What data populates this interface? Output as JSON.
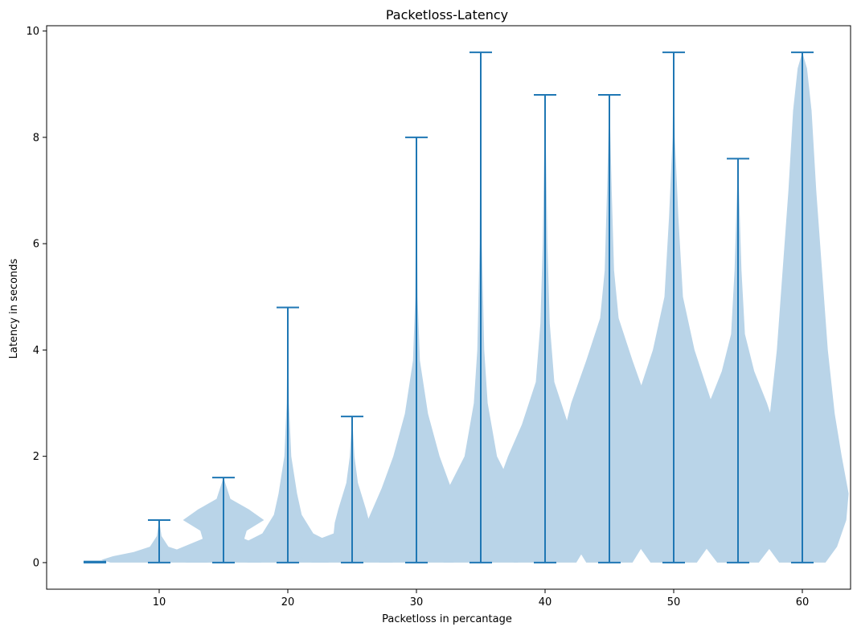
{
  "chart_data": {
    "type": "violin",
    "title": "Packetloss-Latency",
    "xlabel": "Packetloss in percantage",
    "ylabel": "Latency in seconds",
    "xlim": [
      1.25,
      63.75
    ],
    "ylim": [
      -0.5,
      10.1
    ],
    "x_ticks": [
      10,
      20,
      30,
      40,
      50,
      60
    ],
    "y_ticks": [
      0,
      2,
      4,
      6,
      8,
      10
    ],
    "grid": false,
    "body_color": "#b9d4e8",
    "line_color": "#1f77b4",
    "positions": [
      5,
      10,
      15,
      20,
      25,
      30,
      35,
      40,
      45,
      50,
      55,
      60
    ],
    "minimums": [
      0,
      0,
      0,
      0,
      0,
      0,
      0,
      0,
      0,
      0,
      0,
      0
    ],
    "maximums": [
      0.02,
      0.8,
      1.6,
      4.8,
      2.75,
      8.0,
      9.6,
      8.8,
      8.8,
      9.6,
      7.6,
      9.6
    ],
    "density_profiles": [
      [
        [
          0,
          0.1
        ],
        [
          0.01,
          0.1
        ],
        [
          0.02,
          0.1
        ]
      ],
      [
        [
          0,
          0.42
        ],
        [
          0.05,
          0.5
        ],
        [
          0.12,
          0.4
        ],
        [
          0.2,
          0.22
        ],
        [
          0.3,
          0.08
        ],
        [
          0.5,
          0.02
        ],
        [
          0.8,
          0
        ]
      ],
      [
        [
          0,
          0.32
        ],
        [
          0.1,
          0.5
        ],
        [
          0.25,
          0.4
        ],
        [
          0.45,
          0.18
        ],
        [
          0.6,
          0.2
        ],
        [
          0.8,
          0.35
        ],
        [
          1.0,
          0.22
        ],
        [
          1.2,
          0.06
        ],
        [
          1.6,
          0
        ]
      ],
      [
        [
          0,
          0.35
        ],
        [
          0.15,
          0.5
        ],
        [
          0.35,
          0.4
        ],
        [
          0.55,
          0.22
        ],
        [
          0.9,
          0.12
        ],
        [
          1.3,
          0.08
        ],
        [
          2.0,
          0.03
        ],
        [
          3.0,
          0.01
        ],
        [
          4.8,
          0
        ]
      ],
      [
        [
          0,
          0.35
        ],
        [
          0.15,
          0.5
        ],
        [
          0.35,
          0.4
        ],
        [
          0.55,
          0.16
        ],
        [
          0.75,
          0.15
        ],
        [
          1.0,
          0.12
        ],
        [
          1.5,
          0.05
        ],
        [
          2.0,
          0.02
        ],
        [
          2.75,
          0
        ]
      ],
      [
        [
          0,
          0.32
        ],
        [
          0.2,
          0.42
        ],
        [
          0.5,
          0.48
        ],
        [
          0.9,
          0.4
        ],
        [
          1.4,
          0.3
        ],
        [
          2.0,
          0.2
        ],
        [
          2.8,
          0.1
        ],
        [
          3.8,
          0.03
        ],
        [
          5.0,
          0.01
        ],
        [
          8.0,
          0
        ]
      ],
      [
        [
          0,
          0.32
        ],
        [
          0.2,
          0.42
        ],
        [
          0.5,
          0.45
        ],
        [
          0.9,
          0.38
        ],
        [
          1.4,
          0.28
        ],
        [
          2.0,
          0.14
        ],
        [
          3.0,
          0.06
        ],
        [
          4.0,
          0.03
        ],
        [
          6.0,
          0.01
        ],
        [
          9.6,
          0
        ]
      ],
      [
        [
          0,
          0.27
        ],
        [
          0.4,
          0.38
        ],
        [
          0.9,
          0.45
        ],
        [
          1.4,
          0.42
        ],
        [
          2.0,
          0.32
        ],
        [
          2.6,
          0.2
        ],
        [
          3.4,
          0.08
        ],
        [
          4.5,
          0.04
        ],
        [
          6.0,
          0.02
        ],
        [
          8.8,
          0
        ]
      ],
      [
        [
          0,
          0.2
        ],
        [
          0.5,
          0.34
        ],
        [
          1.0,
          0.45
        ],
        [
          1.5,
          0.47
        ],
        [
          2.2,
          0.42
        ],
        [
          3.0,
          0.33
        ],
        [
          3.8,
          0.2
        ],
        [
          4.6,
          0.08
        ],
        [
          5.5,
          0.04
        ],
        [
          7.0,
          0.02
        ],
        [
          8.8,
          0
        ]
      ],
      [
        [
          0,
          0.2
        ],
        [
          0.4,
          0.33
        ],
        [
          1.0,
          0.46
        ],
        [
          1.6,
          0.48
        ],
        [
          2.4,
          0.42
        ],
        [
          3.2,
          0.3
        ],
        [
          4.0,
          0.18
        ],
        [
          5.0,
          0.08
        ],
        [
          6.5,
          0.04
        ],
        [
          8.0,
          0.01
        ],
        [
          9.6,
          0
        ]
      ],
      [
        [
          0,
          0.18
        ],
        [
          0.4,
          0.32
        ],
        [
          1.0,
          0.42
        ],
        [
          1.6,
          0.42
        ],
        [
          2.4,
          0.34
        ],
        [
          3.0,
          0.25
        ],
        [
          3.6,
          0.14
        ],
        [
          4.3,
          0.06
        ],
        [
          5.5,
          0.03
        ],
        [
          7.6,
          0
        ]
      ],
      [
        [
          0,
          0.2
        ],
        [
          0.3,
          0.3
        ],
        [
          0.8,
          0.38
        ],
        [
          1.3,
          0.4
        ],
        [
          2.0,
          0.34
        ],
        [
          2.8,
          0.28
        ],
        [
          4.0,
          0.22
        ],
        [
          5.5,
          0.17
        ],
        [
          7.0,
          0.12
        ],
        [
          8.5,
          0.08
        ],
        [
          9.3,
          0.04
        ],
        [
          9.6,
          0
        ]
      ]
    ]
  }
}
